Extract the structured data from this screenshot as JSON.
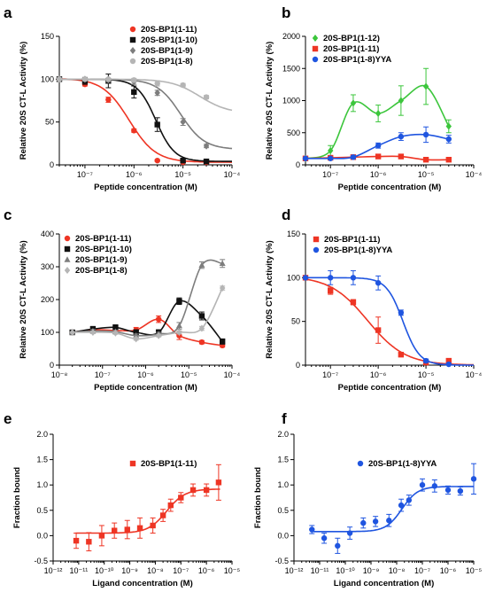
{
  "chart_data": [
    {
      "id": "a",
      "panel_label": "a",
      "type": "line",
      "xscale": "log",
      "xlim": [
        3e-08,
        0.0001
      ],
      "ylim": [
        0,
        150
      ],
      "yticks": [
        0,
        50,
        100,
        150
      ],
      "xtick_exps": [
        -7,
        -6,
        -5,
        -4
      ],
      "xlabel": "Peptide concentration (M)",
      "ylabel": "Relative 20S CT-L Activity (%)",
      "legend_position": "top-right",
      "grid": false,
      "series": [
        {
          "name": "20S-BP1(1-11)",
          "color": "#ee3524",
          "marker": "circle",
          "x": [
            3e-08,
            1e-07,
            3e-07,
            1e-06,
            3e-06,
            1e-05,
            3e-05
          ],
          "y": [
            100,
            94,
            76,
            40,
            5,
            3,
            3
          ],
          "err": [
            0,
            2,
            3,
            2,
            1,
            1,
            1
          ],
          "fit": {
            "bottom": 3,
            "top": 101,
            "ec50": 8e-07,
            "hill": 1.6
          }
        },
        {
          "name": "20S-BP1(1-10)",
          "color": "#111111",
          "marker": "square",
          "x": [
            3e-08,
            1e-07,
            3e-07,
            1e-06,
            3e-06,
            1e-05,
            3e-05
          ],
          "y": [
            100,
            98,
            98,
            85,
            47,
            5,
            4
          ],
          "err": [
            0,
            4,
            8,
            7,
            8,
            2,
            1
          ],
          "fit": {
            "bottom": 4,
            "top": 100,
            "ec50": 2.8e-06,
            "hill": 2.3
          }
        },
        {
          "name": "20S-BP1(1-9)",
          "color": "#7d7d7d",
          "marker": "diamond",
          "x": [
            3e-08,
            1e-07,
            3e-07,
            1e-06,
            3e-06,
            1e-05,
            3e-05
          ],
          "y": [
            100,
            100,
            99,
            97,
            84,
            50,
            22
          ],
          "err": [
            0,
            2,
            2,
            3,
            3,
            4,
            2
          ],
          "fit": {
            "bottom": 18,
            "top": 100,
            "ec50": 9e-06,
            "hill": 1.8
          }
        },
        {
          "name": "20S-BP1(1-8)",
          "color": "#b5b5b5",
          "marker": "circle",
          "x": [
            3e-08,
            1e-07,
            3e-07,
            1e-06,
            3e-06,
            1e-05,
            3e-05
          ],
          "y": [
            100,
            100,
            100,
            99,
            95,
            93,
            79
          ],
          "err": [
            0,
            1,
            1,
            2,
            3,
            2,
            2
          ],
          "fit": {
            "bottom": 60,
            "top": 100,
            "ec50": 2.2e-05,
            "hill": 1.5
          }
        }
      ]
    },
    {
      "id": "b",
      "panel_label": "b",
      "type": "line",
      "xscale": "log",
      "xlim": [
        3e-08,
        0.0001
      ],
      "ylim": [
        0,
        2000
      ],
      "yticks": [
        0,
        500,
        1000,
        1500,
        2000
      ],
      "xtick_exps": [
        -7,
        -6,
        -5,
        -4
      ],
      "xlabel": "Peptide concentration (M)",
      "ylabel": "Relative 20S CT-L Activity (%)",
      "legend_position": "top-left",
      "grid": false,
      "series": [
        {
          "name": "20S-BP1(1-12)",
          "color": "#3cc63c",
          "marker": "diamond",
          "x": [
            3e-08,
            1e-07,
            3e-07,
            1e-06,
            3e-06,
            1e-05,
            3e-05
          ],
          "y": [
            100,
            220,
            960,
            800,
            1000,
            1220,
            600
          ],
          "err": [
            0,
            80,
            130,
            130,
            230,
            280,
            100
          ]
        },
        {
          "name": "20S-BP1(1-11)",
          "color": "#ee3524",
          "marker": "square",
          "x": [
            3e-08,
            1e-07,
            3e-07,
            1e-06,
            3e-06,
            1e-05,
            3e-05
          ],
          "y": [
            100,
            110,
            120,
            130,
            130,
            80,
            80
          ],
          "err": [
            0,
            15,
            15,
            15,
            15,
            10,
            10
          ]
        },
        {
          "name": "20S-BP1(1-8)YYA",
          "color": "#1f55e0",
          "marker": "circle",
          "x": [
            3e-08,
            1e-07,
            3e-07,
            1e-06,
            3e-06,
            1e-05,
            3e-05
          ],
          "y": [
            100,
            100,
            120,
            300,
            440,
            470,
            400
          ],
          "err": [
            0,
            10,
            20,
            40,
            60,
            120,
            60
          ]
        }
      ]
    },
    {
      "id": "c",
      "panel_label": "c",
      "type": "line",
      "xscale": "log",
      "xlim": [
        1e-08,
        0.0001
      ],
      "ylim": [
        0,
        400
      ],
      "yticks": [
        0,
        100,
        200,
        300,
        400
      ],
      "xtick_exps": [
        -8,
        -7,
        -6,
        -5,
        -4
      ],
      "xlabel": "Peptide concentration (M)",
      "ylabel": "Relative 20S CT-L Activity (%)",
      "legend_position": "top-left",
      "grid": false,
      "series": [
        {
          "name": "20S-BP1(1-11)",
          "color": "#ee3524",
          "marker": "circle",
          "x": [
            2e-08,
            6e-08,
            2e-07,
            6e-07,
            2e-06,
            6e-06,
            2e-05,
            6e-05
          ],
          "y": [
            100,
            108,
            106,
            107,
            140,
            90,
            70,
            60
          ],
          "err": [
            0,
            8,
            8,
            8,
            10,
            12,
            5,
            5
          ]
        },
        {
          "name": "20S-BP1(1-10)",
          "color": "#111111",
          "marker": "square",
          "x": [
            2e-08,
            6e-08,
            2e-07,
            6e-07,
            2e-06,
            6e-06,
            2e-05,
            6e-05
          ],
          "y": [
            100,
            110,
            115,
            100,
            100,
            195,
            150,
            72
          ],
          "err": [
            0,
            8,
            8,
            8,
            8,
            10,
            12,
            8
          ]
        },
        {
          "name": "20S-BP1(1-9)",
          "color": "#7d7d7d",
          "marker": "triangle",
          "x": [
            2e-08,
            6e-08,
            2e-07,
            6e-07,
            2e-06,
            6e-06,
            2e-05,
            6e-05
          ],
          "y": [
            100,
            104,
            102,
            90,
            95,
            120,
            305,
            310
          ],
          "err": [
            0,
            5,
            5,
            5,
            5,
            10,
            10,
            12
          ]
        },
        {
          "name": "20S-BP1(1-8)",
          "color": "#b5b5b5",
          "marker": "diamond",
          "x": [
            2e-08,
            6e-08,
            2e-07,
            6e-07,
            2e-06,
            6e-06,
            2e-05,
            6e-05
          ],
          "y": [
            100,
            100,
            98,
            80,
            90,
            100,
            112,
            235
          ],
          "err": [
            0,
            4,
            4,
            4,
            4,
            5,
            6,
            6
          ]
        }
      ]
    },
    {
      "id": "d",
      "panel_label": "d",
      "type": "line",
      "xscale": "log",
      "xlim": [
        3e-08,
        0.0001
      ],
      "ylim": [
        0,
        150
      ],
      "yticks": [
        0,
        50,
        100,
        150
      ],
      "xtick_exps": [
        -7,
        -6,
        -5,
        -4
      ],
      "xlabel": "Peptide concentration (M)",
      "ylabel": "Relative 20S CT-L Activity (%)",
      "legend_position": "top-left",
      "grid": false,
      "series": [
        {
          "name": "20S-BP1(1-11)",
          "color": "#ee3524",
          "marker": "square",
          "x": [
            3e-08,
            1e-07,
            3e-07,
            1e-06,
            3e-06,
            1e-05,
            3e-05
          ],
          "y": [
            100,
            85,
            72,
            40,
            12,
            3,
            5
          ],
          "err": [
            0,
            4,
            3,
            15,
            2,
            1,
            2
          ],
          "fit": {
            "bottom": 0,
            "top": 102,
            "ec50": 6e-07,
            "hill": 1.1
          }
        },
        {
          "name": "20S-BP1(1-8)YYA",
          "color": "#1f55e0",
          "marker": "circle",
          "x": [
            3e-08,
            1e-07,
            3e-07,
            1e-06,
            3e-06,
            1e-05,
            3e-05
          ],
          "y": [
            100,
            100,
            100,
            94,
            60,
            5,
            1
          ],
          "err": [
            0,
            8,
            8,
            8,
            3,
            2,
            1
          ],
          "fit": {
            "bottom": 0,
            "top": 100,
            "ec50": 3.3e-06,
            "hill": 2.5
          }
        }
      ]
    },
    {
      "id": "e",
      "panel_label": "e",
      "type": "scatter",
      "xscale": "log",
      "xlim": [
        1e-12,
        1e-05
      ],
      "ylim": [
        -0.5,
        2.0
      ],
      "yticks": [
        -0.5,
        0.0,
        0.5,
        1.0,
        1.5,
        2.0
      ],
      "xtick_exps": [
        -12,
        -11,
        -10,
        -9,
        -8,
        -7,
        -6,
        -5
      ],
      "xlabel": "Ligand concentration (M)",
      "ylabel": "Fraction bound",
      "legend_position": "top-right",
      "grid": false,
      "series": [
        {
          "name": "20S-BP1(1-11)",
          "color": "#ee3524",
          "marker": "square",
          "x": [
            8e-12,
            2.5e-11,
            8e-11,
            2.5e-10,
            8e-10,
            2.5e-09,
            8e-09,
            2e-08,
            4e-08,
            1e-07,
            3e-07,
            1e-06,
            3e-06
          ],
          "y": [
            -0.1,
            -0.12,
            0.0,
            0.1,
            0.12,
            0.15,
            0.2,
            0.4,
            0.6,
            0.75,
            0.9,
            0.9,
            1.05
          ],
          "err": [
            0.15,
            0.18,
            0.2,
            0.15,
            0.18,
            0.2,
            0.15,
            0.12,
            0.12,
            0.1,
            0.12,
            0.12,
            0.35
          ],
          "fit": {
            "bottom": 0.05,
            "top": 0.92,
            "ec50": 2.8e-08,
            "hill": 1.2
          }
        }
      ]
    },
    {
      "id": "f",
      "panel_label": "f",
      "type": "scatter",
      "xscale": "log",
      "xlim": [
        1e-12,
        1e-05
      ],
      "ylim": [
        -0.5,
        2.0
      ],
      "yticks": [
        -0.5,
        0.0,
        0.5,
        1.0,
        1.5,
        2.0
      ],
      "xtick_exps": [
        -12,
        -11,
        -10,
        -9,
        -8,
        -7,
        -6,
        -5
      ],
      "xlabel": "Ligand concentration (M)",
      "ylabel": "Fraction bound",
      "legend_position": "top-right",
      "grid": false,
      "series": [
        {
          "name": "20S-BP1(1-8)YYA",
          "color": "#1f55e0",
          "marker": "circle",
          "x": [
            5e-12,
            1.5e-11,
            5e-11,
            1.5e-10,
            5e-10,
            1.5e-09,
            5e-09,
            1.5e-08,
            3e-08,
            1e-07,
            3e-07,
            1e-06,
            3e-06,
            1e-05
          ],
          "y": [
            0.12,
            -0.05,
            -0.2,
            0.05,
            0.25,
            0.28,
            0.3,
            0.6,
            0.7,
            1.0,
            0.98,
            0.9,
            0.88,
            1.12
          ],
          "err": [
            0.08,
            0.1,
            0.15,
            0.12,
            0.1,
            0.1,
            0.12,
            0.12,
            0.1,
            0.12,
            0.12,
            0.08,
            0.08,
            0.3
          ],
          "fit": {
            "bottom": 0.08,
            "top": 0.97,
            "ec50": 1.6e-08,
            "hill": 1.4
          }
        }
      ]
    }
  ]
}
